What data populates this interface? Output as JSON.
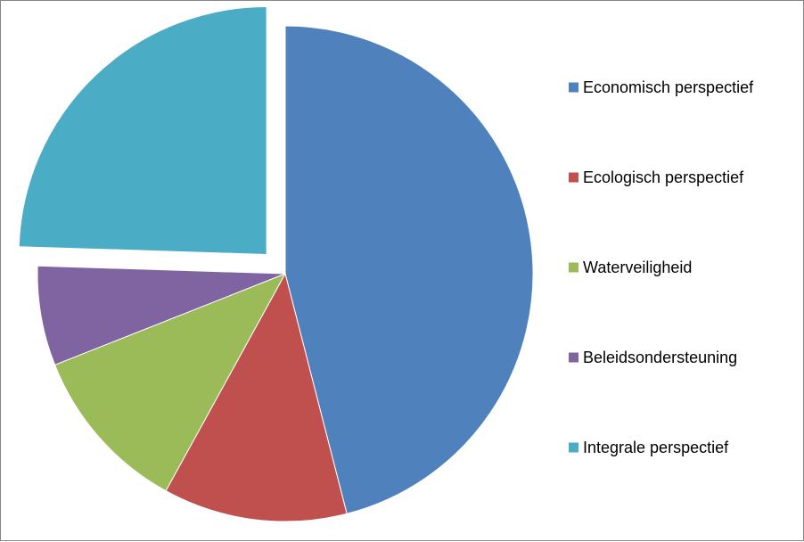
{
  "chart_data": {
    "type": "pie",
    "title": "",
    "categories": [
      "Economisch perspectief",
      "Ecologisch perspectief",
      "Waterveiligheid",
      "Beleidsondersteuning",
      "Integrale perspectief"
    ],
    "values": [
      46,
      12,
      11,
      6.5,
      24.5
    ],
    "colors": [
      "#4F81BD",
      "#C0504D",
      "#9BBB59",
      "#8064A2",
      "#4BACC6"
    ],
    "exploded": [
      false,
      false,
      false,
      false,
      true
    ],
    "legend_position": "right",
    "data_labels": false
  }
}
